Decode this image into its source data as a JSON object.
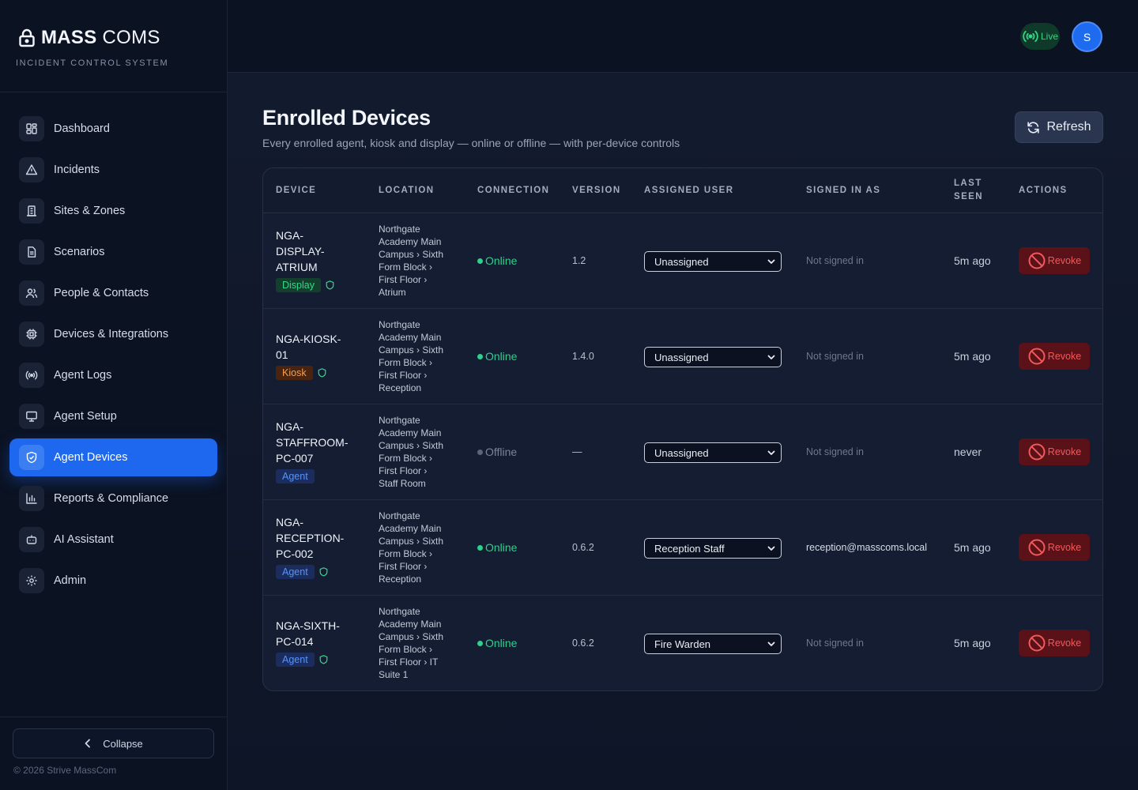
{
  "brand": {
    "name_bold": "MASS",
    "name_light": "COMS",
    "subtitle": "INCIDENT CONTROL SYSTEM"
  },
  "sidebar": {
    "items": [
      {
        "label": "Dashboard",
        "icon": "grid-icon"
      },
      {
        "label": "Incidents",
        "icon": "warning-icon"
      },
      {
        "label": "Sites & Zones",
        "icon": "building-icon"
      },
      {
        "label": "Scenarios",
        "icon": "document-icon"
      },
      {
        "label": "People & Contacts",
        "icon": "people-icon"
      },
      {
        "label": "Devices & Integrations",
        "icon": "chip-icon"
      },
      {
        "label": "Agent Logs",
        "icon": "broadcast-icon"
      },
      {
        "label": "Agent Setup",
        "icon": "monitor-icon"
      },
      {
        "label": "Agent Devices",
        "icon": "shield-icon",
        "active": true
      },
      {
        "label": "Reports & Compliance",
        "icon": "bar-chart-icon"
      },
      {
        "label": "AI Assistant",
        "icon": "bot-icon"
      },
      {
        "label": "Admin",
        "icon": "gear-icon"
      }
    ],
    "collapse_label": "Collapse",
    "copyright": "© 2026 Strive MassCom"
  },
  "topbar": {
    "live_label": "Live",
    "avatar_initial": "S"
  },
  "page": {
    "title": "Enrolled Devices",
    "subtitle": "Every enrolled agent, kiosk and display — online or offline — with per-device controls",
    "refresh_label": "Refresh"
  },
  "table": {
    "headers": {
      "device": "DEVICE",
      "location": "LOCATION",
      "connection": "CONNECTION",
      "version": "VERSION",
      "assigned_user": "ASSIGNED USER",
      "signed_in_as": "SIGNED IN AS",
      "last_seen_1": "LAST",
      "last_seen_2": "SEEN",
      "actions": "ACTIONS"
    },
    "rows": [
      {
        "device_lines": [
          "NGA-",
          "DISPLAY-",
          "ATRIUM"
        ],
        "badge": "Display",
        "badge_type": "display",
        "shield": true,
        "location_lines": [
          "Northgate",
          "Academy Main",
          "Campus › Sixth",
          "Form Block ›",
          "First Floor ›",
          "Atrium"
        ],
        "connection": "Online",
        "online": true,
        "version": "1.2",
        "assigned": "Unassigned",
        "signed_in": "Not signed in",
        "signed_in_user": false,
        "last_seen": "5m ago",
        "action": "Revoke"
      },
      {
        "device_lines": [
          "NGA-KIOSK-",
          "01"
        ],
        "badge": "Kiosk",
        "badge_type": "kiosk",
        "shield": true,
        "location_lines": [
          "Northgate",
          "Academy Main",
          "Campus › Sixth",
          "Form Block ›",
          "First Floor ›",
          "Reception"
        ],
        "connection": "Online",
        "online": true,
        "version": "1.4.0",
        "assigned": "Unassigned",
        "signed_in": "Not signed in",
        "signed_in_user": false,
        "last_seen": "5m ago",
        "action": "Revoke"
      },
      {
        "device_lines": [
          "NGA-",
          "STAFFROOM-",
          "PC-007"
        ],
        "badge": "Agent",
        "badge_type": "agent",
        "shield": false,
        "location_lines": [
          "Northgate",
          "Academy Main",
          "Campus › Sixth",
          "Form Block ›",
          "First Floor ›",
          "Staff Room"
        ],
        "connection": "Offline",
        "online": false,
        "version": "—",
        "assigned": "Unassigned",
        "signed_in": "Not signed in",
        "signed_in_user": false,
        "last_seen": "never",
        "action": "Revoke"
      },
      {
        "device_lines": [
          "NGA-",
          "RECEPTION-",
          "PC-002"
        ],
        "badge": "Agent",
        "badge_type": "agent",
        "shield": true,
        "location_lines": [
          "Northgate",
          "Academy Main",
          "Campus › Sixth",
          "Form Block ›",
          "First Floor ›",
          "Reception"
        ],
        "connection": "Online",
        "online": true,
        "version": "0.6.2",
        "assigned": "Reception Staff",
        "signed_in": "reception@masscoms.local",
        "signed_in_user": true,
        "last_seen": "5m ago",
        "action": "Revoke"
      },
      {
        "device_lines": [
          "NGA-SIXTH-",
          "PC-014"
        ],
        "badge": "Agent",
        "badge_type": "agent",
        "shield": true,
        "location_lines": [
          "Northgate",
          "Academy Main",
          "Campus › Sixth",
          "Form Block ›",
          "First Floor › IT",
          "Suite 1"
        ],
        "connection": "Online",
        "online": true,
        "version": "0.6.2",
        "assigned": "Fire Warden",
        "signed_in": "Not signed in",
        "signed_in_user": false,
        "last_seen": "5m ago",
        "action": "Revoke"
      }
    ]
  },
  "colors": {
    "accent": "#1d68ee",
    "online": "#2fd08c",
    "danger": "#f05a5a"
  }
}
